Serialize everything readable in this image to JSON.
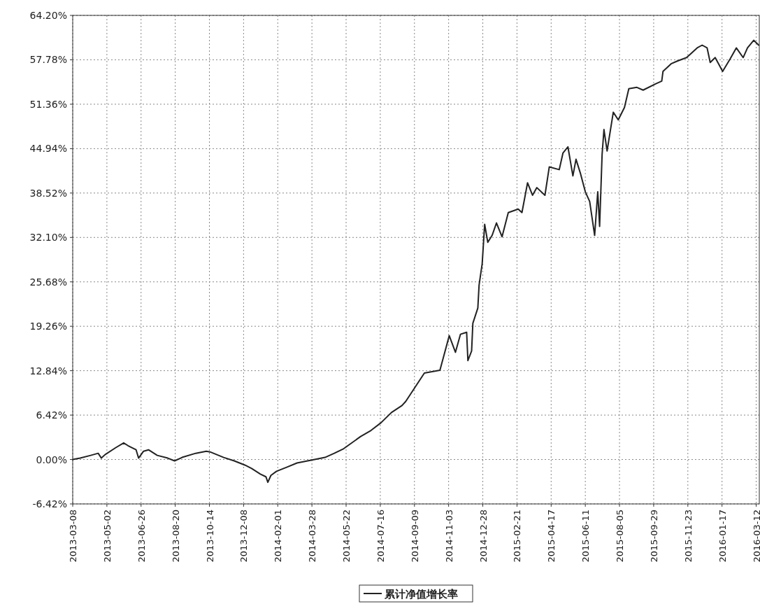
{
  "chart_data": {
    "type": "line",
    "x": [
      "2013-03-08",
      "2013-03-20",
      "2013-04-06",
      "2013-04-18",
      "2013-04-23",
      "2013-04-29",
      "2013-05-16",
      "2013-05-29",
      "2013-06-05",
      "2013-06-18",
      "2013-06-22",
      "2013-06-30",
      "2013-07-08",
      "2013-07-22",
      "2013-08-08",
      "2013-08-19",
      "2013-08-31",
      "2013-09-22",
      "2013-10-09",
      "2013-10-15",
      "2013-10-26",
      "2013-11-06",
      "2013-11-23",
      "2013-12-10",
      "2013-12-21",
      "2014-01-04",
      "2014-01-13",
      "2014-01-16",
      "2014-01-21",
      "2014-01-30",
      "2014-02-16",
      "2014-03-04",
      "2014-03-21",
      "2014-04-07",
      "2014-04-18",
      "2014-05-03",
      "2014-05-17",
      "2014-05-28",
      "2014-06-14",
      "2014-07-01",
      "2014-07-17",
      "2014-08-03",
      "2014-08-20",
      "2014-08-26",
      "2014-09-25",
      "2014-10-20",
      "2014-11-04",
      "2014-11-14",
      "2014-11-22",
      "2014-12-02",
      "2014-12-04",
      "2014-12-10",
      "2014-12-12",
      "2014-12-20",
      "2014-12-22",
      "2014-12-27",
      "2014-12-31",
      "2015-01-05",
      "2015-01-12",
      "2015-01-19",
      "2015-01-28",
      "2015-02-07",
      "2015-02-23",
      "2015-03-01",
      "2015-03-10",
      "2015-03-18",
      "2015-03-25",
      "2015-04-07",
      "2015-04-14",
      "2015-04-30",
      "2015-05-06",
      "2015-05-14",
      "2015-05-22",
      "2015-05-27",
      "2015-06-03",
      "2015-06-11",
      "2015-06-18",
      "2015-06-26",
      "2015-07-01",
      "2015-07-04",
      "2015-07-08",
      "2015-07-11",
      "2015-07-16",
      "2015-07-26",
      "2015-08-03",
      "2015-08-13",
      "2015-08-20",
      "2015-09-02",
      "2015-09-12",
      "2015-10-02",
      "2015-10-12",
      "2015-10-14",
      "2015-10-27",
      "2015-11-06",
      "2015-11-21",
      "2015-12-08",
      "2015-12-16",
      "2015-12-24",
      "2015-12-29",
      "2016-01-06",
      "2016-01-18",
      "2016-01-30",
      "2016-02-09",
      "2016-02-20",
      "2016-02-27",
      "2016-03-08",
      "2016-03-16"
    ],
    "series": [
      {
        "name": "累计净值增长率",
        "color": "#222222",
        "values": [
          0.0,
          0.2,
          0.6,
          0.9,
          0.2,
          0.7,
          1.7,
          2.4,
          2.0,
          1.4,
          0.2,
          1.2,
          1.4,
          0.6,
          0.2,
          -0.2,
          0.3,
          0.9,
          1.2,
          1.1,
          0.7,
          0.3,
          -0.2,
          -0.8,
          -1.3,
          -2.1,
          -2.5,
          -3.3,
          -2.3,
          -1.7,
          -1.1,
          -0.5,
          -0.2,
          0.1,
          0.3,
          0.9,
          1.5,
          2.2,
          3.3,
          4.2,
          5.3,
          6.8,
          7.8,
          8.4,
          12.5,
          12.9,
          17.9,
          15.5,
          18.1,
          18.4,
          14.3,
          15.7,
          19.7,
          21.9,
          25.2,
          28.3,
          34.0,
          31.4,
          32.4,
          34.2,
          32.2,
          35.7,
          36.2,
          35.7,
          40.0,
          38.2,
          39.3,
          38.2,
          42.3,
          41.9,
          44.3,
          45.2,
          41.0,
          43.4,
          41.4,
          38.7,
          37.3,
          32.4,
          38.7,
          33.7,
          44.1,
          47.7,
          44.6,
          50.2,
          49.1,
          50.9,
          53.6,
          53.8,
          53.4,
          54.3,
          54.7,
          56.1,
          57.2,
          57.6,
          58.1,
          59.5,
          59.9,
          59.5,
          57.4,
          58.1,
          56.1,
          57.9,
          59.5,
          58.1,
          59.5,
          60.6,
          59.9
        ]
      }
    ],
    "xlim": [
      "2013-03-08",
      "2016-03-17"
    ],
    "xticks": [
      "2013-03-08",
      "2013-05-02",
      "2013-06-26",
      "2013-08-20",
      "2013-10-14",
      "2013-12-08",
      "2014-02-01",
      "2014-03-28",
      "2014-05-22",
      "2014-07-16",
      "2014-09-09",
      "2014-11-03",
      "2014-12-28",
      "2015-02-21",
      "2015-04-17",
      "2015-06-11",
      "2015-08-05",
      "2015-09-29",
      "2015-11-23",
      "2016-01-17",
      "2016-03-12"
    ],
    "ylim": [
      -6.42,
      64.2
    ],
    "yticks": [
      {
        "value": -6.42,
        "label": "-6.42%"
      },
      {
        "value": 0,
        "label": "0.00%"
      },
      {
        "value": 6.42,
        "label": "6.42%"
      },
      {
        "value": 12.84,
        "label": "12.84%"
      },
      {
        "value": 19.26,
        "label": "19.26%"
      },
      {
        "value": 25.68,
        "label": "25.68%"
      },
      {
        "value": 32.1,
        "label": "32.10%"
      },
      {
        "value": 38.52,
        "label": "38.52%"
      },
      {
        "value": 44.94,
        "label": "44.94%"
      },
      {
        "value": 51.36,
        "label": "51.36%"
      },
      {
        "value": 57.78,
        "label": "57.78%"
      },
      {
        "value": 64.2,
        "label": "64.20%"
      }
    ],
    "grid": true,
    "legend": "bottom",
    "line_style": "solid"
  }
}
